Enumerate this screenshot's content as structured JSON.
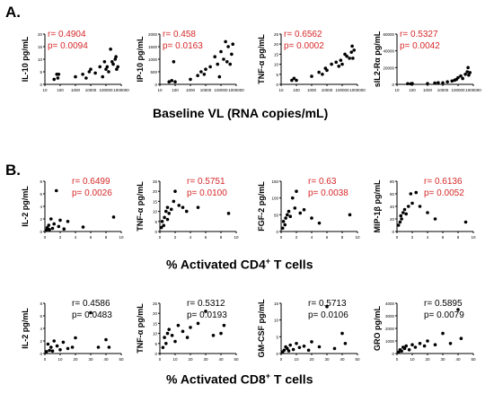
{
  "figure": {
    "panel_a_label": "A.",
    "panel_b_label": "B.",
    "row_a_xlabel": "Baseline VL (RNA copies/mL)",
    "row_b_xlabel_pre": "% Activated CD4",
    "row_b_xlabel_sup": "+",
    "row_b_xlabel_post": " T cells",
    "row_c_xlabel_pre": "% Activated CD8",
    "row_c_xlabel_sup": "+",
    "row_c_xlabel_post": " T cells"
  },
  "chart_data": [
    {
      "type": "scatter",
      "row": "A",
      "xscale": "log",
      "ylabel": "IL-10 pg/mL",
      "ylim": [
        0,
        20
      ],
      "yticks": [
        "0",
        "5",
        "10",
        "15",
        "20"
      ],
      "xlim": [
        10,
        1000000
      ],
      "xticks": [
        "10",
        "100",
        "1000",
        "10000",
        "100000",
        "1000000"
      ],
      "stats": {
        "r": "r= 0.4904",
        "p": "p= 0.0094",
        "color": "#d62728"
      },
      "points": [
        [
          40,
          2
        ],
        [
          60,
          4
        ],
        [
          70,
          2.5
        ],
        [
          80,
          4
        ],
        [
          1000,
          3
        ],
        [
          3000,
          4
        ],
        [
          5000,
          2.5
        ],
        [
          8000,
          5
        ],
        [
          10000,
          6
        ],
        [
          20000,
          4.5
        ],
        [
          40000,
          7
        ],
        [
          60000,
          3
        ],
        [
          80000,
          9
        ],
        [
          100000,
          6
        ],
        [
          120000,
          7
        ],
        [
          150000,
          5
        ],
        [
          200000,
          14
        ],
        [
          250000,
          9
        ],
        [
          300000,
          8
        ],
        [
          400000,
          10
        ],
        [
          450000,
          11
        ],
        [
          500000,
          6
        ],
        [
          600000,
          7
        ]
      ]
    },
    {
      "type": "scatter",
      "row": "A",
      "xscale": "log",
      "ylabel": "IP-10 pg/mL",
      "ylim": [
        0,
        2000
      ],
      "yticks": [
        "0",
        "500",
        "1000",
        "1500",
        "2000"
      ],
      "xlim": [
        10,
        1000000
      ],
      "xticks": [
        "10",
        "100",
        "1000",
        "10000",
        "100000",
        "1000000"
      ],
      "stats": {
        "r": "r= 0.458",
        "p": "p= 0.0163",
        "color": "#d62728"
      },
      "points": [
        [
          40,
          100
        ],
        [
          60,
          150
        ],
        [
          80,
          900
        ],
        [
          100,
          100
        ],
        [
          1000,
          200
        ],
        [
          3000,
          350
        ],
        [
          5000,
          500
        ],
        [
          8000,
          400
        ],
        [
          10000,
          600
        ],
        [
          20000,
          700
        ],
        [
          40000,
          1100
        ],
        [
          60000,
          800
        ],
        [
          80000,
          300
        ],
        [
          100000,
          1300
        ],
        [
          150000,
          1000
        ],
        [
          200000,
          1700
        ],
        [
          250000,
          900
        ],
        [
          300000,
          1500
        ],
        [
          400000,
          800
        ],
        [
          500000,
          1200
        ],
        [
          600000,
          1600
        ]
      ]
    },
    {
      "type": "scatter",
      "row": "A",
      "xscale": "log",
      "ylabel": "TNF-α pg/mL",
      "ylim": [
        0,
        25
      ],
      "yticks": [
        "0",
        "5",
        "10",
        "15",
        "20",
        "25"
      ],
      "xlim": [
        10,
        1000000
      ],
      "xticks": [
        "10",
        "100",
        "1000",
        "10000",
        "100000",
        "1000000"
      ],
      "stats": {
        "r": "r= 0.6562",
        "p": "p= 0.0002",
        "color": "#d62728"
      },
      "points": [
        [
          50,
          2
        ],
        [
          70,
          3
        ],
        [
          100,
          2
        ],
        [
          1000,
          4
        ],
        [
          3000,
          6
        ],
        [
          5000,
          5
        ],
        [
          8000,
          8
        ],
        [
          10000,
          7
        ],
        [
          20000,
          10
        ],
        [
          40000,
          11
        ],
        [
          60000,
          9
        ],
        [
          80000,
          12
        ],
        [
          100000,
          10
        ],
        [
          150000,
          15
        ],
        [
          200000,
          14
        ],
        [
          300000,
          13
        ],
        [
          400000,
          16
        ],
        [
          450000,
          19
        ],
        [
          500000,
          13
        ],
        [
          600000,
          17
        ]
      ]
    },
    {
      "type": "scatter",
      "row": "A",
      "xscale": "log",
      "ylabel": "sIL2-Rα pg/mL",
      "ylim": [
        0,
        60000
      ],
      "yticks": [
        "0",
        "20000",
        "40000",
        "60000"
      ],
      "xlim": [
        10,
        1000000
      ],
      "xticks": [
        "10",
        "100",
        "1000",
        "10000",
        "100000",
        "1000000"
      ],
      "stats": {
        "r": "r= 0.5327",
        "p": "p= 0.0042",
        "color": "#d62728"
      },
      "points": [
        [
          50,
          800
        ],
        [
          80,
          600
        ],
        [
          100,
          1000
        ],
        [
          1000,
          900
        ],
        [
          3000,
          1500
        ],
        [
          5000,
          2000
        ],
        [
          10000,
          1800
        ],
        [
          20000,
          3000
        ],
        [
          40000,
          4000
        ],
        [
          60000,
          5000
        ],
        [
          80000,
          6000
        ],
        [
          100000,
          8000
        ],
        [
          150000,
          10000
        ],
        [
          200000,
          7000
        ],
        [
          300000,
          12000
        ],
        [
          400000,
          15000
        ],
        [
          450000,
          20000
        ],
        [
          500000,
          11000
        ],
        [
          600000,
          14000
        ]
      ]
    },
    {
      "type": "scatter",
      "row": "B",
      "ylabel": "IL-2 pg/mL",
      "ylim": [
        0,
        8
      ],
      "yticks": [
        "0",
        "2",
        "4",
        "6",
        "8"
      ],
      "xlim": [
        0,
        10
      ],
      "xticks": [
        "0",
        "2",
        "4",
        "6",
        "8",
        "10"
      ],
      "stats": {
        "r": "r= 0.6499",
        "p": "p= 0.0026",
        "color": "#d62728"
      },
      "points": [
        [
          0.2,
          0.2
        ],
        [
          0.3,
          0.6
        ],
        [
          0.4,
          0.4
        ],
        [
          0.5,
          1.0
        ],
        [
          0.6,
          0.3
        ],
        [
          0.8,
          2.0
        ],
        [
          1.0,
          0.5
        ],
        [
          1.2,
          1.2
        ],
        [
          1.5,
          6.5
        ],
        [
          1.8,
          0.8
        ],
        [
          2.0,
          1.8
        ],
        [
          2.5,
          0.4
        ],
        [
          3.0,
          1.6
        ],
        [
          5.0,
          0.7
        ],
        [
          9.0,
          2.3
        ]
      ]
    },
    {
      "type": "scatter",
      "row": "B",
      "ylabel": "TNF-α pg/mL",
      "ylim": [
        0,
        25
      ],
      "yticks": [
        "0",
        "5",
        "10",
        "15",
        "20",
        "25"
      ],
      "xlim": [
        0,
        10
      ],
      "xticks": [
        "0",
        "2",
        "4",
        "6",
        "8",
        "10"
      ],
      "stats": {
        "r": "r= 0.5751",
        "p": "p= 0.0100",
        "color": "#d62728"
      },
      "points": [
        [
          0.2,
          2
        ],
        [
          0.3,
          5
        ],
        [
          0.5,
          3
        ],
        [
          0.6,
          7
        ],
        [
          0.8,
          10
        ],
        [
          1.0,
          6
        ],
        [
          1.0,
          12
        ],
        [
          1.2,
          9
        ],
        [
          1.5,
          11
        ],
        [
          1.8,
          15
        ],
        [
          2.0,
          20
        ],
        [
          2.5,
          13
        ],
        [
          3.0,
          12
        ],
        [
          3.5,
          10
        ],
        [
          5.0,
          12
        ],
        [
          9.0,
          9
        ]
      ]
    },
    {
      "type": "scatter",
      "row": "B",
      "ylabel": "FGF-2 pg/mL",
      "ylim": [
        0,
        150
      ],
      "yticks": [
        "0",
        "50",
        "100",
        "150"
      ],
      "xlim": [
        0,
        10
      ],
      "xticks": [
        "0",
        "2",
        "4",
        "6",
        "8",
        "10"
      ],
      "stats": {
        "r": "r= 0.63",
        "p": "p= 0.0038",
        "color": "#d62728"
      },
      "points": [
        [
          0.2,
          10
        ],
        [
          0.3,
          30
        ],
        [
          0.5,
          20
        ],
        [
          0.6,
          40
        ],
        [
          0.8,
          50
        ],
        [
          1.0,
          60
        ],
        [
          1.2,
          45
        ],
        [
          1.5,
          100
        ],
        [
          1.8,
          70
        ],
        [
          2.0,
          120
        ],
        [
          2.5,
          55
        ],
        [
          3.0,
          65
        ],
        [
          4.0,
          40
        ],
        [
          5.0,
          25
        ],
        [
          9.0,
          50
        ]
      ]
    },
    {
      "type": "scatter",
      "row": "B",
      "ylabel": "MIP-1β pg/mL",
      "ylim": [
        0,
        80
      ],
      "yticks": [
        "0",
        "20",
        "40",
        "60",
        "80"
      ],
      "xlim": [
        0,
        10
      ],
      "xticks": [
        "0",
        "2",
        "4",
        "6",
        "8",
        "10"
      ],
      "stats": {
        "r": "r= 0.6136",
        "p": "p= 0.0052",
        "color": "#d62728"
      },
      "points": [
        [
          0.2,
          10
        ],
        [
          0.4,
          15
        ],
        [
          0.5,
          25
        ],
        [
          0.6,
          20
        ],
        [
          0.8,
          30
        ],
        [
          1.0,
          35
        ],
        [
          1.2,
          28
        ],
        [
          1.5,
          40
        ],
        [
          1.8,
          60
        ],
        [
          2.0,
          45
        ],
        [
          2.5,
          62
        ],
        [
          3.0,
          40
        ],
        [
          4.0,
          30
        ],
        [
          5.0,
          20
        ],
        [
          9.0,
          15
        ]
      ]
    },
    {
      "type": "scatter",
      "row": "C",
      "ylabel": "IL-2 pg/mL",
      "ylim": [
        0,
        8
      ],
      "yticks": [
        "0",
        "2",
        "4",
        "6",
        "8"
      ],
      "xlim": [
        0,
        50
      ],
      "xticks": [
        "0",
        "10",
        "20",
        "30",
        "40",
        "50"
      ],
      "stats": {
        "r": "r= 0.4586",
        "p": "p= 0.0483",
        "color": "#000000"
      },
      "points": [
        [
          1,
          0.3
        ],
        [
          2,
          1.5
        ],
        [
          3,
          0.5
        ],
        [
          4,
          1.0
        ],
        [
          5,
          0.4
        ],
        [
          6,
          2.0
        ],
        [
          8,
          1.2
        ],
        [
          10,
          0.6
        ],
        [
          12,
          1.8
        ],
        [
          15,
          0.8
        ],
        [
          18,
          1.0
        ],
        [
          20,
          2.5
        ],
        [
          30,
          6.5
        ],
        [
          35,
          1.0
        ],
        [
          40,
          2.2
        ],
        [
          42,
          1.0
        ]
      ]
    },
    {
      "type": "scatter",
      "row": "C",
      "ylabel": "TNF-α pg/mL",
      "ylim": [
        0,
        25
      ],
      "yticks": [
        "0",
        "5",
        "10",
        "15",
        "20",
        "25"
      ],
      "xlim": [
        0,
        50
      ],
      "xticks": [
        "0",
        "10",
        "20",
        "30",
        "40",
        "50"
      ],
      "stats": {
        "r": "r= 0.5312",
        "p": "p= 0.0193",
        "color": "#000000"
      },
      "points": [
        [
          2,
          3
        ],
        [
          3,
          8
        ],
        [
          4,
          5
        ],
        [
          5,
          10
        ],
        [
          6,
          12
        ],
        [
          8,
          9
        ],
        [
          10,
          6
        ],
        [
          12,
          14
        ],
        [
          15,
          11
        ],
        [
          18,
          8
        ],
        [
          20,
          13
        ],
        [
          25,
          15
        ],
        [
          30,
          21
        ],
        [
          35,
          9
        ],
        [
          40,
          10
        ],
        [
          42,
          14
        ]
      ]
    },
    {
      "type": "scatter",
      "row": "C",
      "ylabel": "GM-CSF pg/mL",
      "ylim": [
        0,
        15
      ],
      "yticks": [
        "0",
        "5",
        "10",
        "15"
      ],
      "xlim": [
        0,
        50
      ],
      "xticks": [
        "0",
        "10",
        "20",
        "30",
        "40",
        "50"
      ],
      "stats": {
        "r": "r= 0.5713",
        "p": "p= 0.0106",
        "color": "#000000"
      },
      "points": [
        [
          1,
          0.5
        ],
        [
          2,
          1.0
        ],
        [
          3,
          2.0
        ],
        [
          4,
          1.5
        ],
        [
          5,
          0.8
        ],
        [
          6,
          2.5
        ],
        [
          8,
          1.2
        ],
        [
          10,
          3.0
        ],
        [
          12,
          1.8
        ],
        [
          15,
          2.2
        ],
        [
          18,
          1.0
        ],
        [
          20,
          3.5
        ],
        [
          25,
          2.0
        ],
        [
          30,
          14
        ],
        [
          35,
          1.5
        ],
        [
          40,
          6.0
        ],
        [
          42,
          3.0
        ]
      ]
    },
    {
      "type": "scatter",
      "row": "C",
      "ylabel": "GRO pg/mL",
      "ylim": [
        0,
        4000
      ],
      "yticks": [
        "0",
        "1000",
        "2000",
        "3000",
        "4000"
      ],
      "xlim": [
        0,
        50
      ],
      "xticks": [
        "0",
        "10",
        "20",
        "30",
        "40",
        "50"
      ],
      "stats": {
        "r": "r= 0.5895",
        "p": "p= 0.0079",
        "color": "#000000"
      },
      "points": [
        [
          1,
          100
        ],
        [
          2,
          300
        ],
        [
          3,
          200
        ],
        [
          4,
          500
        ],
        [
          5,
          400
        ],
        [
          6,
          600
        ],
        [
          8,
          300
        ],
        [
          10,
          700
        ],
        [
          12,
          500
        ],
        [
          15,
          800
        ],
        [
          18,
          600
        ],
        [
          20,
          1000
        ],
        [
          25,
          700
        ],
        [
          30,
          1600
        ],
        [
          35,
          800
        ],
        [
          40,
          3500
        ],
        [
          42,
          1200
        ]
      ]
    }
  ]
}
